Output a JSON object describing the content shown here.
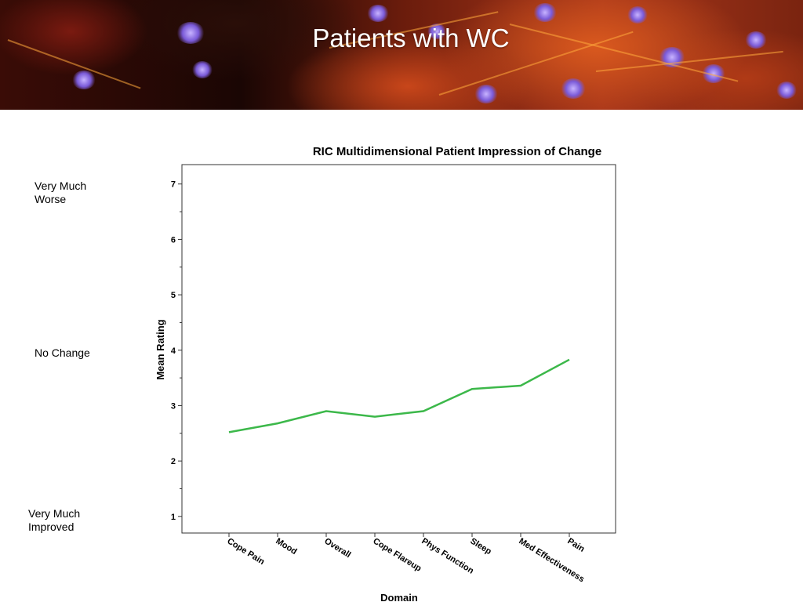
{
  "slide": {
    "title": "Patients with WC"
  },
  "scale_labels": {
    "top": [
      "Very Much",
      "Worse"
    ],
    "middle": [
      "No Change"
    ],
    "bottom": [
      "Very Much",
      "Improved"
    ]
  },
  "chart_data": {
    "type": "line",
    "title": "RIC Multidimensional Patient Impression of Change",
    "xlabel": "Domain",
    "ylabel": "Mean Rating",
    "categories": [
      "Cope Pain",
      "Mood",
      "Overall",
      "Cope Flareup",
      "Phys Function",
      "Sleep",
      "Med Effectiveness",
      "Pain"
    ],
    "values": [
      2.52,
      2.68,
      2.9,
      2.8,
      2.9,
      3.3,
      3.36,
      3.83
    ],
    "ylim": [
      0.7,
      7.35
    ],
    "yticks": [
      "1",
      "2",
      "3",
      "4",
      "5",
      "6",
      "7"
    ],
    "line_color": "#3cb84a",
    "grid": false,
    "legend": "none"
  }
}
